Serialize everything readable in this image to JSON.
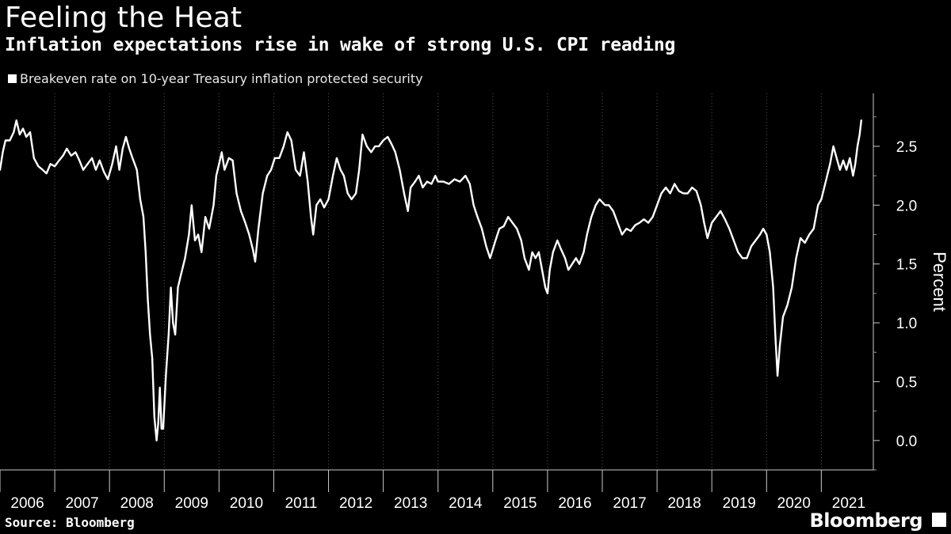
{
  "header": {
    "title": "Feeling the Heat",
    "subtitle": "Inflation expectations rise in wake of strong U.S. CPI reading"
  },
  "legend": {
    "label": "Breakeven rate on 10-year Treasury inflation protected security",
    "color": "#ffffff"
  },
  "footer": {
    "source": "Source: Bloomberg",
    "brand": "Bloomberg",
    "brand_icon": "bloomberg-terminal-icon"
  },
  "chart_data": {
    "type": "line",
    "title": "Feeling the Heat",
    "ylabel": "Percent",
    "xlabel": "",
    "ylim": [
      -0.25,
      2.95
    ],
    "xlim": [
      2006.0,
      2021.95
    ],
    "yticks": [
      0.0,
      0.5,
      1.0,
      1.5,
      2.0,
      2.5
    ],
    "ytick_labels": [
      "0.0",
      "0.5",
      "1.0",
      "1.5",
      "2.0",
      "2.5"
    ],
    "x_categories": [
      "2006",
      "2007",
      "2008",
      "2009",
      "2010",
      "2011",
      "2012",
      "2013",
      "2014",
      "2015",
      "2016",
      "2017",
      "2018",
      "2019",
      "2020",
      "2021"
    ],
    "grid": "vertical dotted at year boundaries",
    "series": [
      {
        "name": "Breakeven rate on 10-year Treasury inflation protected security",
        "color": "#ffffff",
        "points": [
          [
            2006.0,
            2.3
          ],
          [
            2006.05,
            2.45
          ],
          [
            2006.1,
            2.55
          ],
          [
            2006.18,
            2.55
          ],
          [
            2006.25,
            2.62
          ],
          [
            2006.3,
            2.72
          ],
          [
            2006.36,
            2.6
          ],
          [
            2006.42,
            2.65
          ],
          [
            2006.48,
            2.58
          ],
          [
            2006.55,
            2.62
          ],
          [
            2006.62,
            2.4
          ],
          [
            2006.7,
            2.33
          ],
          [
            2006.78,
            2.3
          ],
          [
            2006.85,
            2.27
          ],
          [
            2006.92,
            2.35
          ],
          [
            2007.0,
            2.33
          ],
          [
            2007.08,
            2.38
          ],
          [
            2007.15,
            2.42
          ],
          [
            2007.22,
            2.48
          ],
          [
            2007.3,
            2.42
          ],
          [
            2007.38,
            2.45
          ],
          [
            2007.45,
            2.38
          ],
          [
            2007.52,
            2.3
          ],
          [
            2007.6,
            2.35
          ],
          [
            2007.68,
            2.4
          ],
          [
            2007.75,
            2.3
          ],
          [
            2007.82,
            2.38
          ],
          [
            2007.9,
            2.28
          ],
          [
            2007.97,
            2.22
          ],
          [
            2008.05,
            2.35
          ],
          [
            2008.12,
            2.5
          ],
          [
            2008.18,
            2.3
          ],
          [
            2008.24,
            2.48
          ],
          [
            2008.3,
            2.58
          ],
          [
            2008.36,
            2.48
          ],
          [
            2008.42,
            2.4
          ],
          [
            2008.5,
            2.3
          ],
          [
            2008.56,
            2.05
          ],
          [
            2008.62,
            1.9
          ],
          [
            2008.66,
            1.6
          ],
          [
            2008.7,
            1.2
          ],
          [
            2008.74,
            0.9
          ],
          [
            2008.78,
            0.7
          ],
          [
            2008.82,
            0.2
          ],
          [
            2008.86,
            0.0
          ],
          [
            2008.89,
            0.15
          ],
          [
            2008.92,
            0.45
          ],
          [
            2008.95,
            0.1
          ],
          [
            2008.98,
            0.1
          ],
          [
            2009.03,
            0.55
          ],
          [
            2009.08,
            0.9
          ],
          [
            2009.12,
            1.3
          ],
          [
            2009.16,
            1.0
          ],
          [
            2009.2,
            0.9
          ],
          [
            2009.25,
            1.3
          ],
          [
            2009.3,
            1.4
          ],
          [
            2009.38,
            1.55
          ],
          [
            2009.45,
            1.75
          ],
          [
            2009.5,
            2.0
          ],
          [
            2009.56,
            1.7
          ],
          [
            2009.62,
            1.75
          ],
          [
            2009.68,
            1.6
          ],
          [
            2009.75,
            1.9
          ],
          [
            2009.82,
            1.8
          ],
          [
            2009.9,
            2.0
          ],
          [
            2009.95,
            2.25
          ],
          [
            2010.0,
            2.35
          ],
          [
            2010.05,
            2.45
          ],
          [
            2010.1,
            2.3
          ],
          [
            2010.18,
            2.4
          ],
          [
            2010.25,
            2.38
          ],
          [
            2010.32,
            2.1
          ],
          [
            2010.4,
            1.95
          ],
          [
            2010.48,
            1.85
          ],
          [
            2010.55,
            1.75
          ],
          [
            2010.62,
            1.62
          ],
          [
            2010.66,
            1.52
          ],
          [
            2010.72,
            1.8
          ],
          [
            2010.8,
            2.1
          ],
          [
            2010.88,
            2.25
          ],
          [
            2010.95,
            2.3
          ],
          [
            2011.02,
            2.4
          ],
          [
            2011.1,
            2.4
          ],
          [
            2011.18,
            2.5
          ],
          [
            2011.25,
            2.62
          ],
          [
            2011.32,
            2.55
          ],
          [
            2011.4,
            2.3
          ],
          [
            2011.48,
            2.25
          ],
          [
            2011.55,
            2.45
          ],
          [
            2011.62,
            2.2
          ],
          [
            2011.68,
            1.9
          ],
          [
            2011.72,
            1.75
          ],
          [
            2011.78,
            2.0
          ],
          [
            2011.85,
            2.05
          ],
          [
            2011.92,
            1.98
          ],
          [
            2012.0,
            2.05
          ],
          [
            2012.08,
            2.25
          ],
          [
            2012.15,
            2.4
          ],
          [
            2012.22,
            2.3
          ],
          [
            2012.28,
            2.25
          ],
          [
            2012.35,
            2.1
          ],
          [
            2012.42,
            2.05
          ],
          [
            2012.5,
            2.1
          ],
          [
            2012.56,
            2.3
          ],
          [
            2012.62,
            2.6
          ],
          [
            2012.7,
            2.5
          ],
          [
            2012.78,
            2.45
          ],
          [
            2012.85,
            2.5
          ],
          [
            2012.92,
            2.5
          ],
          [
            2013.0,
            2.55
          ],
          [
            2013.08,
            2.58
          ],
          [
            2013.15,
            2.52
          ],
          [
            2013.22,
            2.45
          ],
          [
            2013.3,
            2.3
          ],
          [
            2013.38,
            2.1
          ],
          [
            2013.45,
            1.95
          ],
          [
            2013.5,
            2.15
          ],
          [
            2013.58,
            2.2
          ],
          [
            2013.65,
            2.25
          ],
          [
            2013.72,
            2.15
          ],
          [
            2013.8,
            2.2
          ],
          [
            2013.88,
            2.18
          ],
          [
            2013.95,
            2.25
          ],
          [
            2014.0,
            2.2
          ],
          [
            2014.1,
            2.2
          ],
          [
            2014.2,
            2.18
          ],
          [
            2014.3,
            2.22
          ],
          [
            2014.4,
            2.2
          ],
          [
            2014.5,
            2.25
          ],
          [
            2014.58,
            2.18
          ],
          [
            2014.65,
            2.0
          ],
          [
            2014.72,
            1.9
          ],
          [
            2014.8,
            1.8
          ],
          [
            2014.88,
            1.65
          ],
          [
            2014.95,
            1.55
          ],
          [
            2015.05,
            1.7
          ],
          [
            2015.12,
            1.8
          ],
          [
            2015.2,
            1.82
          ],
          [
            2015.28,
            1.9
          ],
          [
            2015.36,
            1.85
          ],
          [
            2015.44,
            1.8
          ],
          [
            2015.52,
            1.7
          ],
          [
            2015.58,
            1.55
          ],
          [
            2015.62,
            1.5
          ],
          [
            2015.66,
            1.45
          ],
          [
            2015.72,
            1.6
          ],
          [
            2015.78,
            1.55
          ],
          [
            2015.84,
            1.6
          ],
          [
            2015.9,
            1.45
          ],
          [
            2015.96,
            1.3
          ],
          [
            2016.0,
            1.25
          ],
          [
            2016.04,
            1.45
          ],
          [
            2016.1,
            1.6
          ],
          [
            2016.18,
            1.7
          ],
          [
            2016.25,
            1.62
          ],
          [
            2016.32,
            1.55
          ],
          [
            2016.38,
            1.45
          ],
          [
            2016.45,
            1.5
          ],
          [
            2016.52,
            1.55
          ],
          [
            2016.58,
            1.5
          ],
          [
            2016.66,
            1.6
          ],
          [
            2016.72,
            1.75
          ],
          [
            2016.8,
            1.9
          ],
          [
            2016.88,
            2.0
          ],
          [
            2016.95,
            2.05
          ],
          [
            2017.05,
            2.0
          ],
          [
            2017.12,
            2.0
          ],
          [
            2017.2,
            1.95
          ],
          [
            2017.28,
            1.85
          ],
          [
            2017.36,
            1.75
          ],
          [
            2017.44,
            1.8
          ],
          [
            2017.52,
            1.78
          ],
          [
            2017.6,
            1.83
          ],
          [
            2017.68,
            1.85
          ],
          [
            2017.76,
            1.88
          ],
          [
            2017.84,
            1.85
          ],
          [
            2017.92,
            1.9
          ],
          [
            2018.0,
            2.0
          ],
          [
            2018.08,
            2.1
          ],
          [
            2018.16,
            2.15
          ],
          [
            2018.24,
            2.1
          ],
          [
            2018.32,
            2.18
          ],
          [
            2018.4,
            2.12
          ],
          [
            2018.48,
            2.1
          ],
          [
            2018.56,
            2.1
          ],
          [
            2018.64,
            2.15
          ],
          [
            2018.72,
            2.12
          ],
          [
            2018.8,
            2.0
          ],
          [
            2018.86,
            1.85
          ],
          [
            2018.92,
            1.72
          ],
          [
            2019.0,
            1.85
          ],
          [
            2019.08,
            1.9
          ],
          [
            2019.16,
            1.95
          ],
          [
            2019.24,
            1.88
          ],
          [
            2019.32,
            1.8
          ],
          [
            2019.4,
            1.7
          ],
          [
            2019.48,
            1.6
          ],
          [
            2019.56,
            1.55
          ],
          [
            2019.64,
            1.55
          ],
          [
            2019.72,
            1.65
          ],
          [
            2019.8,
            1.7
          ],
          [
            2019.88,
            1.75
          ],
          [
            2019.94,
            1.8
          ],
          [
            2020.0,
            1.75
          ],
          [
            2020.06,
            1.6
          ],
          [
            2020.12,
            1.3
          ],
          [
            2020.16,
            0.9
          ],
          [
            2020.2,
            0.55
          ],
          [
            2020.24,
            0.8
          ],
          [
            2020.3,
            1.05
          ],
          [
            2020.38,
            1.15
          ],
          [
            2020.46,
            1.3
          ],
          [
            2020.54,
            1.55
          ],
          [
            2020.62,
            1.72
          ],
          [
            2020.7,
            1.68
          ],
          [
            2020.78,
            1.75
          ],
          [
            2020.86,
            1.8
          ],
          [
            2020.94,
            2.0
          ],
          [
            2021.0,
            2.05
          ],
          [
            2021.08,
            2.2
          ],
          [
            2021.16,
            2.35
          ],
          [
            2021.22,
            2.5
          ],
          [
            2021.28,
            2.4
          ],
          [
            2021.34,
            2.3
          ],
          [
            2021.4,
            2.38
          ],
          [
            2021.46,
            2.3
          ],
          [
            2021.52,
            2.4
          ],
          [
            2021.58,
            2.25
          ],
          [
            2021.62,
            2.35
          ],
          [
            2021.66,
            2.5
          ],
          [
            2021.7,
            2.6
          ],
          [
            2021.73,
            2.72
          ]
        ]
      }
    ]
  }
}
